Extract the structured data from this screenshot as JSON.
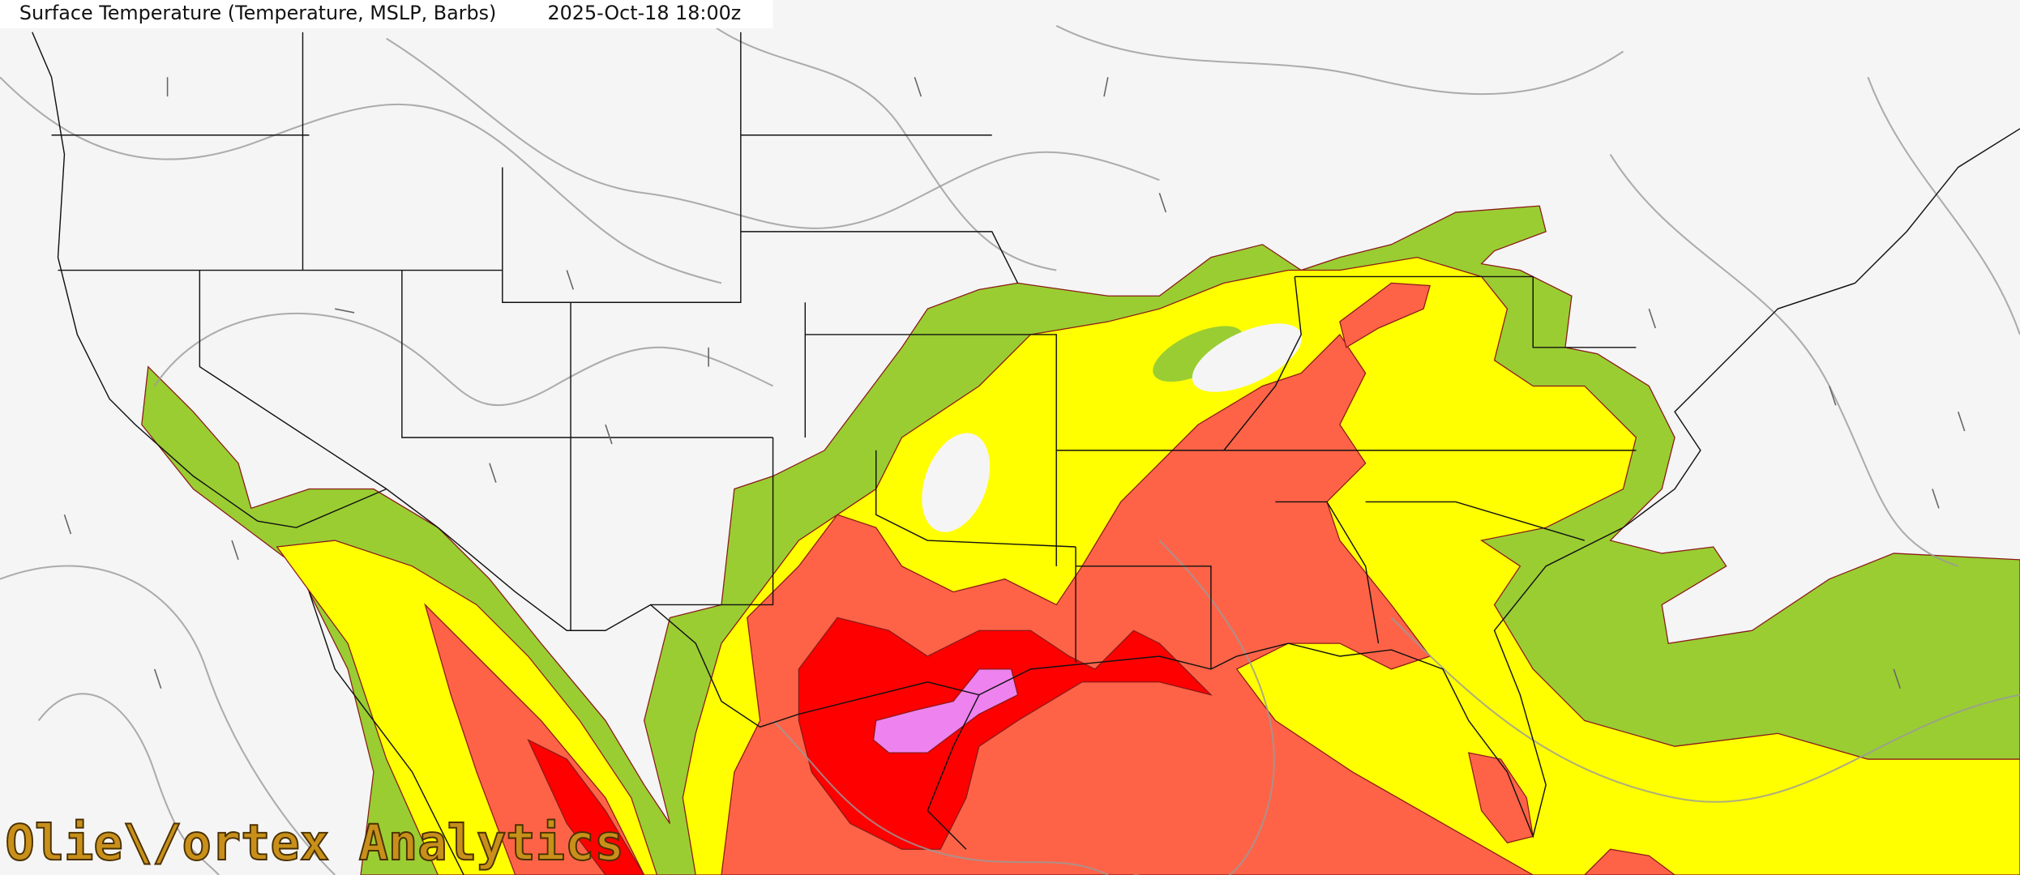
{
  "header": {
    "title": "Surface Temperature (Temperature, MSLP, Barbs)",
    "valid_time": "2025-Oct-18 18:00z"
  },
  "watermark": "Olie\\/ortex Analytics"
}
